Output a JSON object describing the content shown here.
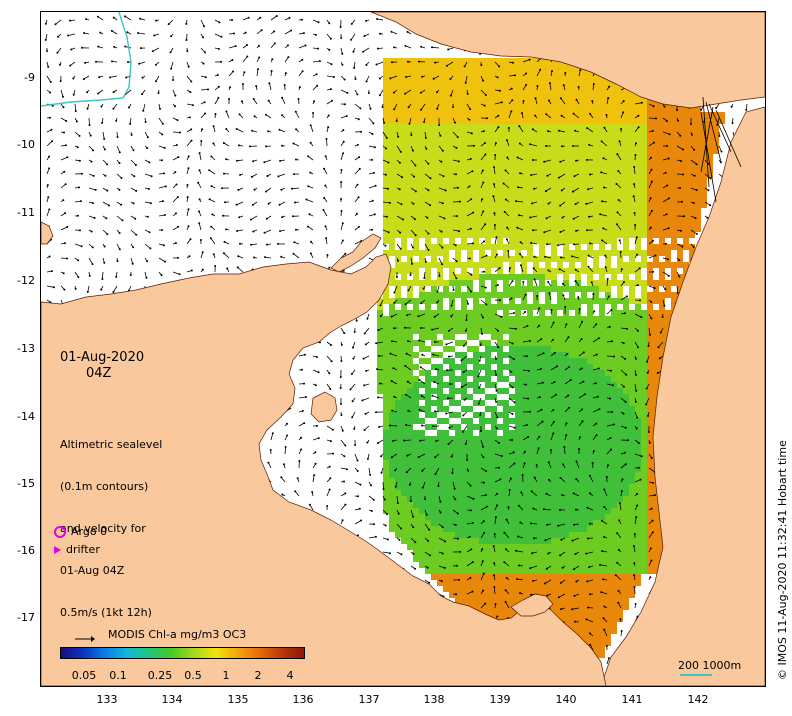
{
  "map": {
    "date": "01-Aug-2020",
    "hour": "04Z",
    "legend_lines": [
      "Altimetric sealevel",
      "(0.1m contours)",
      "and velocity for",
      "01-Aug 04Z",
      "0.5m/s (1kt 12h)"
    ],
    "argo_label": "Argo 0",
    "drifter_label": "drifter",
    "colorbar_title": "MODIS Chl-a mg/m3 OC3",
    "colorbar_ticks": [
      "0.05",
      "0.1",
      "0.25",
      "0.5",
      "1",
      "2",
      "4"
    ],
    "scale_label": "200  1000m",
    "credit": "© IMOS 11-Aug-2020 11:32:41 Hobart time",
    "lon_ticks": [
      "133",
      "134",
      "135",
      "136",
      "137",
      "138",
      "139",
      "140",
      "141",
      "142"
    ],
    "lat_ticks": [
      "-9",
      "-10",
      "-11",
      "-12",
      "-13",
      "-14",
      "-15",
      "-16",
      "-17"
    ],
    "colors": {
      "land": "#f9c89c",
      "ocean": "#ffffff",
      "vector": "#000000",
      "coastline": "#5a1a00",
      "marker": "#e000e0",
      "contour": "#3cc6c6"
    },
    "colormap": [
      "#1d0c7c",
      "#0a35c2",
      "#0b7de6",
      "#11b9d8",
      "#21c67a",
      "#47c92a",
      "#a6d81e",
      "#f0e20d",
      "#f5a50b",
      "#e46b07",
      "#b8360a",
      "#8a1a05"
    ]
  }
}
